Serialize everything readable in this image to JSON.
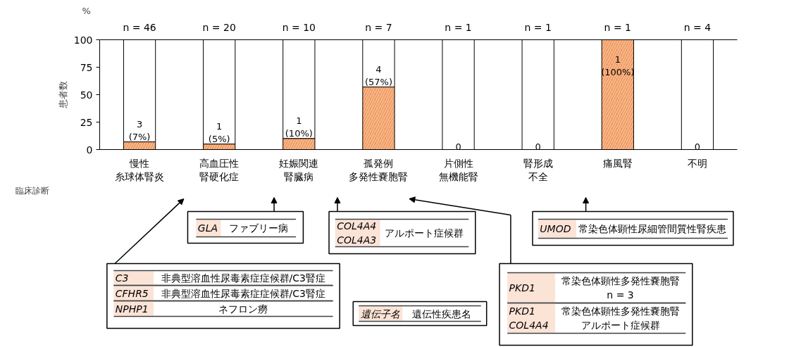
{
  "chart_data": {
    "type": "bar",
    "stacked": true,
    "ylabel": "患者数",
    "xlabel": "臨床診断",
    "categories": [
      "慢性糸球体腎炎",
      "高血圧性腎硬化症",
      "妊娠関連腎臓病",
      "孤発例多発性嚢胞腎",
      "片側性無機能腎",
      "腎形成不全",
      "痛風腎",
      "不明"
    ],
    "series": [
      {
        "color": "#ed7d31",
        "values": [
          7,
          5,
          10,
          57,
          0,
          0,
          100,
          0
        ],
        "value_labels": [
          "3\n(7%)",
          "1\n(5%)",
          "1\n(10%)",
          "4\n(57%)",
          "0",
          "0",
          "1\n(100%)",
          "0"
        ]
      },
      {
        "color": "#ffffff",
        "values": [
          93,
          95,
          90,
          43,
          100,
          100,
          0,
          100
        ]
      }
    ],
    "ylim": [
      0,
      100
    ],
    "yticks": [
      0,
      25,
      50,
      75,
      100
    ],
    "annotations": [
      "n = 46",
      "n = 20",
      "n = 10",
      "n = 7",
      "n = 1",
      "n = 1",
      "n = 1",
      "n = 4",
      "%",
      "GLA ファブリー病",
      "COL4A4\nCOL4A3 アルポート症候群",
      "UMOD 常染色体顕性尿細管間質性腎疾患",
      "C3 非典型溶血性尿毒素症症候群/C3腎症",
      "CFHR5 非典型溶血性尿毒素症症候群/C3腎症",
      "NPHP1 ネフロン癆",
      "PKD1 常染色体顕性多発性嚢胞腎\nn = 3",
      "PKD1\nCOL4A4 常染色体顕性多発性嚢胞腎アルポート症候群",
      "遺伝子名 遺伝性疾患名"
    ]
  }
}
